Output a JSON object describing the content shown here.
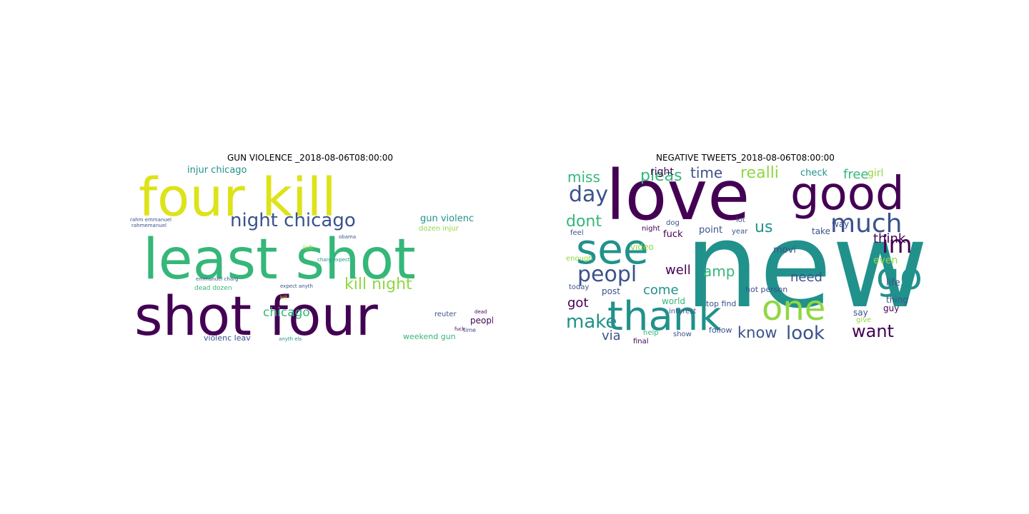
{
  "figure": {
    "left_title": "GUN VIOLENCE _2018-08-06T08:00:00",
    "right_title": "NEGATIVE TWEETS_2018-08-06T08:00:00"
  },
  "left_cloud": {
    "words": [
      "four kill",
      "least shot",
      "shot four",
      "night chicago",
      "kill night",
      "chicago",
      "injur chicago",
      "gun violenc",
      "dozen injur",
      "weekend gun",
      "violenc leav",
      "peopl",
      "emmanuel charg",
      "dead dozen",
      "rahm emmanuel",
      "rahmemanuel",
      "reuter",
      "dead",
      "time",
      "left",
      "expect anyth",
      "charg expect",
      "anyth els",
      "obama",
      "fuck",
      "kill"
    ]
  },
  "right_cloud": {
    "words": [
      "new",
      "love",
      "good",
      "thank",
      "one",
      "see",
      "go",
      "peopl",
      "much",
      "day",
      "im",
      "look",
      "want",
      "know",
      "make",
      "dont",
      "miss",
      "time",
      "realli",
      "free",
      "pleas",
      "well",
      "amp",
      "us",
      "come",
      "need",
      "think",
      "even",
      "got",
      "via",
      "right",
      "life",
      "check",
      "girl",
      "world",
      "say",
      "thing",
      "guy",
      "post",
      "fuck",
      "video",
      "movi",
      "point",
      "way",
      "take",
      "hot person",
      "top find",
      "year",
      "follow",
      "show",
      "interest",
      "today",
      "enough",
      "help",
      "final",
      "give",
      "feel",
      "lot",
      "night",
      "dog"
    ]
  },
  "colors": {
    "viridis_dark": "#440154",
    "viridis_blue": "#3b528b",
    "viridis_teal": "#21918c",
    "viridis_green": "#35b779",
    "viridis_lime": "#90d743",
    "viridis_yellow": "#dde318"
  }
}
